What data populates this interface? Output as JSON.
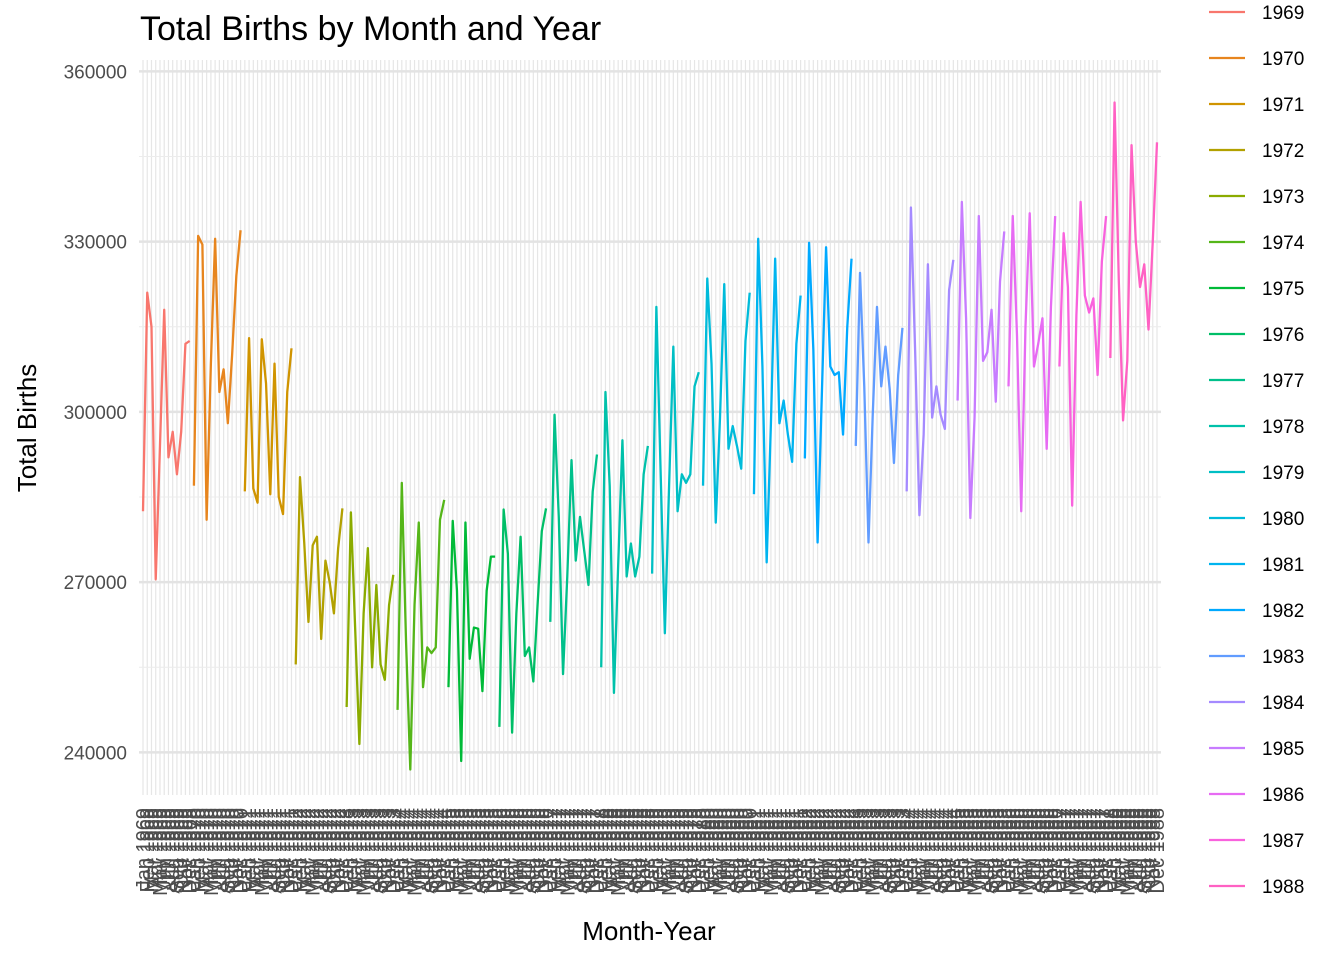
{
  "chart_data": {
    "type": "line",
    "title": "Total Births by Month and Year",
    "xlabel": "Month-Year",
    "ylabel": "Total Births",
    "y_ticks": [
      240000,
      270000,
      300000,
      330000,
      360000
    ],
    "ylim": [
      232500,
      362000
    ],
    "x_tick_label_format": "Mon YYYY (one per month, overlapping, rotated vertical)",
    "legend_position": "right",
    "grid": true,
    "series": [
      {
        "name": "1969",
        "color": "#F8766D",
        "values": [
          282500,
          321000,
          315000,
          270500,
          294000,
          318000,
          292000,
          296500,
          289000,
          296500,
          312000,
          312500
        ]
      },
      {
        "name": "1970",
        "color": "#E7851E",
        "values": [
          287000,
          331000,
          329500,
          281000,
          308500,
          330500,
          303500,
          307500,
          298000,
          310000,
          324000,
          332000
        ]
      },
      {
        "name": "1971",
        "color": "#D09400",
        "values": [
          286000,
          313000,
          286500,
          284000,
          312800,
          305000,
          285500,
          308500,
          285000,
          282000,
          303500,
          311200
        ]
      },
      {
        "name": "1972",
        "color": "#B2A100",
        "values": [
          255500,
          288500,
          277000,
          263000,
          276500,
          278000,
          260000,
          273800,
          270000,
          264500,
          276000,
          283000
        ]
      },
      {
        "name": "1973",
        "color": "#8BAB00",
        "values": [
          248000,
          282300,
          262000,
          241500,
          264500,
          276000,
          255000,
          269500,
          255500,
          252800,
          266000,
          271300
        ]
      },
      {
        "name": "1974",
        "color": "#55B619",
        "values": [
          247500,
          287500,
          259500,
          237000,
          266000,
          280500,
          251500,
          258500,
          257500,
          258500,
          281000,
          284500
        ]
      },
      {
        "name": "1975",
        "color": "#00BA38",
        "values": [
          251500,
          280800,
          268500,
          238500,
          280500,
          256500,
          262000,
          261800,
          250800,
          268500,
          274500,
          274500
        ]
      },
      {
        "name": "1976",
        "color": "#00BE67",
        "values": [
          244500,
          282800,
          275000,
          243500,
          264500,
          278000,
          257000,
          258500,
          252500,
          266000,
          279000,
          283000
        ]
      },
      {
        "name": "1977",
        "color": "#00C08B",
        "values": [
          263000,
          299500,
          281500,
          253800,
          271000,
          291500,
          273800,
          281500,
          275500,
          269500,
          286000,
          292500
        ]
      },
      {
        "name": "1978",
        "color": "#00C1AA",
        "values": [
          255000,
          303500,
          287000,
          250500,
          273000,
          295000,
          271000,
          276800,
          271000,
          274500,
          289000,
          294000
        ]
      },
      {
        "name": "1979",
        "color": "#00BFC4",
        "values": [
          271500,
          318500,
          289500,
          261000,
          287000,
          311500,
          282500,
          289000,
          287500,
          289000,
          304500,
          307000
        ]
      },
      {
        "name": "1980",
        "color": "#00BBDA",
        "values": [
          287000,
          323500,
          308500,
          280500,
          299000,
          322500,
          293500,
          297500,
          294000,
          290000,
          312500,
          321000
        ]
      },
      {
        "name": "1981",
        "color": "#00B4EF",
        "values": [
          285500,
          330500,
          308000,
          273500,
          298000,
          327000,
          298000,
          302000,
          296000,
          291200,
          312000,
          320500
        ]
      },
      {
        "name": "1982",
        "color": "#00A9FF",
        "values": [
          291800,
          329800,
          311000,
          277000,
          303000,
          329000,
          308000,
          306500,
          307000,
          296000,
          315000,
          327000
        ]
      },
      {
        "name": "1983",
        "color": "#619CFF",
        "values": [
          294000,
          324500,
          304500,
          277000,
          299500,
          318500,
          304500,
          311500,
          304000,
          291000,
          306500,
          314800
        ]
      },
      {
        "name": "1984",
        "color": "#A58AFF",
        "values": [
          286000,
          336000,
          310500,
          281800,
          296000,
          326000,
          299000,
          304500,
          299500,
          297000,
          321500,
          326800
        ]
      },
      {
        "name": "1985",
        "color": "#C77CFF",
        "values": [
          302000,
          337000,
          316500,
          281300,
          299000,
          334500,
          309000,
          310500,
          318000,
          301800,
          323000,
          331800
        ]
      },
      {
        "name": "1986",
        "color": "#E76BF3",
        "values": [
          304500,
          334500,
          313500,
          282500,
          315000,
          335000,
          308000,
          312000,
          316500,
          293500,
          318500,
          334500
        ]
      },
      {
        "name": "1987",
        "color": "#F962DD",
        "values": [
          308000,
          331500,
          322000,
          283500,
          317000,
          337000,
          320500,
          317500,
          320000,
          306500,
          326500,
          334500
        ]
      },
      {
        "name": "1988",
        "color": "#FF61C3",
        "values": [
          309500,
          354500,
          323000,
          298500,
          309000,
          347000,
          330000,
          322000,
          326000,
          314500,
          330000,
          347500
        ]
      }
    ]
  }
}
